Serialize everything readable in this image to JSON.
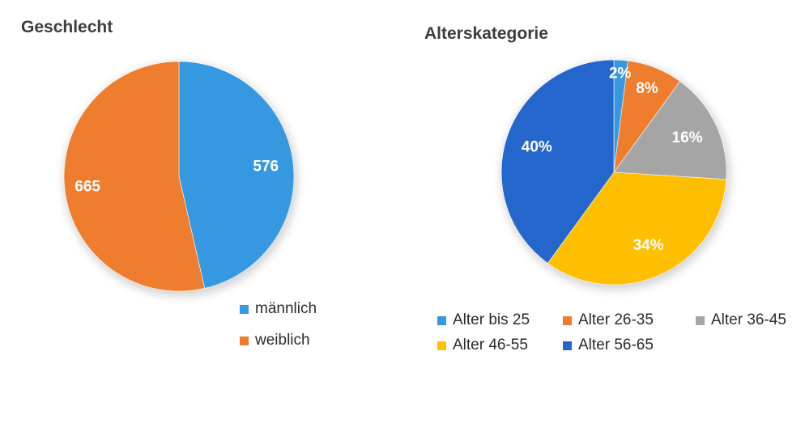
{
  "chart_data": [
    {
      "type": "pie",
      "title": "Geschlecht",
      "labels": [
        "männlich",
        "weiblich"
      ],
      "values": [
        576,
        665
      ],
      "data_labels": [
        "576",
        "665"
      ],
      "colors": [
        "#3598e0",
        "#ee7d2e"
      ],
      "legend_position": "bottom-right"
    },
    {
      "type": "pie",
      "title": "Alterskategorie",
      "labels": [
        "Alter bis 25",
        "Alter 26-35",
        "Alter 36-45",
        "Alter 46-55",
        "Alter 56-65"
      ],
      "values": [
        2,
        8,
        16,
        34,
        40
      ],
      "data_labels": [
        "2%",
        "8%",
        "16%",
        "34%",
        "40%"
      ],
      "colors": [
        "#3598e0",
        "#ee7d2e",
        "#a5a5a5",
        "#fdbf00",
        "#2466cc"
      ],
      "legend_position": "bottom"
    }
  ]
}
